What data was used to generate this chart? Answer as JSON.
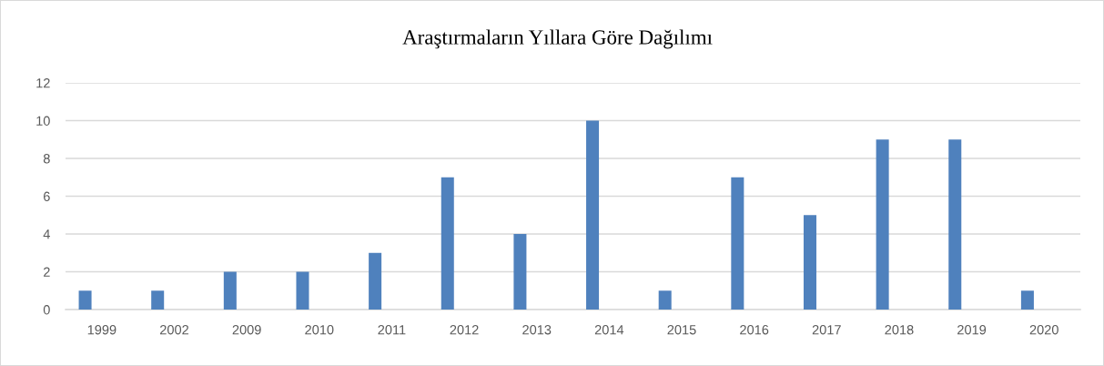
{
  "chart_data": {
    "type": "bar",
    "title": "Araştırmaların Yıllara Göre Dağılımı",
    "categories": [
      "1999",
      "2002",
      "2009",
      "2010",
      "2011",
      "2012",
      "2013",
      "2014",
      "2015",
      "2016",
      "2017",
      "2018",
      "2019",
      "2020"
    ],
    "values": [
      1,
      1,
      2,
      2,
      3,
      7,
      4,
      10,
      1,
      7,
      5,
      9,
      9,
      1
    ],
    "color": "#4f81bd",
    "ylim": [
      0,
      12
    ],
    "yticks": [
      0,
      2,
      4,
      6,
      8,
      10,
      12
    ],
    "grid": "y"
  }
}
